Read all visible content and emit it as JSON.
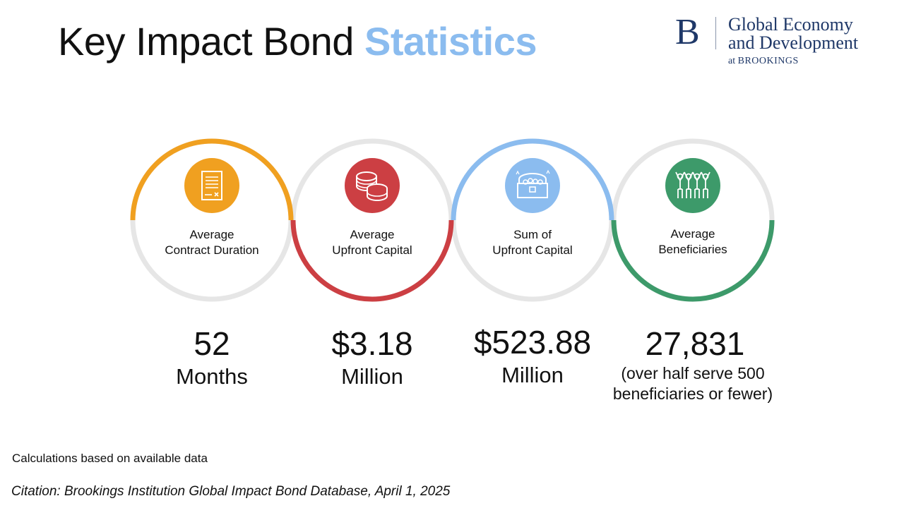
{
  "title": {
    "main": "Key Impact Bond",
    "accent": "Statistics"
  },
  "colors": {
    "accent": "#8bbcef",
    "ring_track": "#e6e6e6",
    "orange": "#f0a020",
    "red": "#cc3f43",
    "blue": "#8bbcef",
    "green": "#3d9a6a"
  },
  "logo": {
    "letter": "B",
    "line1": "Global Economy",
    "line2": "and Development",
    "line3_prefix": "at",
    "line3_org": "BROOKINGS"
  },
  "stats": [
    {
      "icon": "contract-document-icon",
      "color": "#f0a020",
      "label_line1": "Average",
      "label_line2": "Contract Duration",
      "value": "52",
      "unit": "Months"
    },
    {
      "icon": "coins-stack-icon",
      "color": "#cc3f43",
      "label_line1": "Average",
      "label_line2": "Upfront Capital",
      "value": "$3.18",
      "unit": "Million"
    },
    {
      "icon": "treasure-chest-icon",
      "color": "#8bbcef",
      "label_line1": "Sum of",
      "label_line2": "Upfront Capital",
      "value": "$523.88",
      "unit": "Million"
    },
    {
      "icon": "people-group-icon",
      "color": "#3d9a6a",
      "label_line1": "Average",
      "label_line2": "Beneficiaries",
      "value": "27,831",
      "note_line1": "(over half serve 500",
      "note_line2": "beneficiaries or fewer)"
    }
  ],
  "footnote": "Calculations based on available data",
  "citation": "Citation: Brookings Institution Global Impact Bond Database, April 1, 2025"
}
